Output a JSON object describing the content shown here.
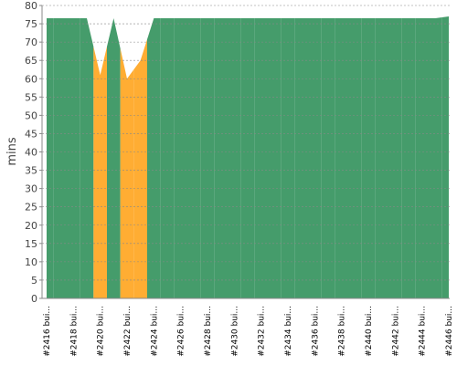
{
  "chart_data": {
    "type": "area",
    "y_label": "mins",
    "categories": [
      "#2416 bui...",
      null,
      "#2418 bui...",
      null,
      "#2420 bui...",
      null,
      "#2422 bui...",
      null,
      "#2424 bui...",
      null,
      "#2426 bui...",
      null,
      "#2428 bui...",
      null,
      "#2430 bui...",
      null,
      "#2432 bui...",
      null,
      "#2434 bui...",
      null,
      "#2436 bui...",
      null,
      "#2438 bui...",
      null,
      "#2440 bui...",
      null,
      "#2442 bui...",
      null,
      "#2444 bui...",
      null,
      "#2446 bui..."
    ],
    "values": [
      76.5,
      76.5,
      76.5,
      76.5,
      61,
      76.5,
      60,
      65,
      76.5,
      76.5,
      76.5,
      76.5,
      76.5,
      76.5,
      76.5,
      76.5,
      76.5,
      76.5,
      76.5,
      76.5,
      76.5,
      76.5,
      76.5,
      76.5,
      76.5,
      76.5,
      76.5,
      76.5,
      76.5,
      76.5,
      77
    ],
    "colors": [
      "#459c6b",
      "#459c6b",
      "#459c6b",
      "#459c6b",
      "#ffad33",
      "#459c6b",
      "#ffad33",
      "#ffad33",
      "#459c6b",
      "#459c6b",
      "#459c6b",
      "#459c6b",
      "#459c6b",
      "#459c6b",
      "#459c6b",
      "#459c6b",
      "#459c6b",
      "#459c6b",
      "#459c6b",
      "#459c6b",
      "#459c6b",
      "#459c6b",
      "#459c6b",
      "#459c6b",
      "#459c6b",
      "#459c6b",
      "#459c6b",
      "#459c6b",
      "#459c6b",
      "#459c6b",
      "#459c6b"
    ],
    "ylim": [
      0,
      80
    ],
    "yticks": [
      0,
      5,
      10,
      15,
      20,
      25,
      30,
      35,
      40,
      45,
      50,
      55,
      60,
      65,
      70,
      75,
      80
    ],
    "grid": true
  }
}
